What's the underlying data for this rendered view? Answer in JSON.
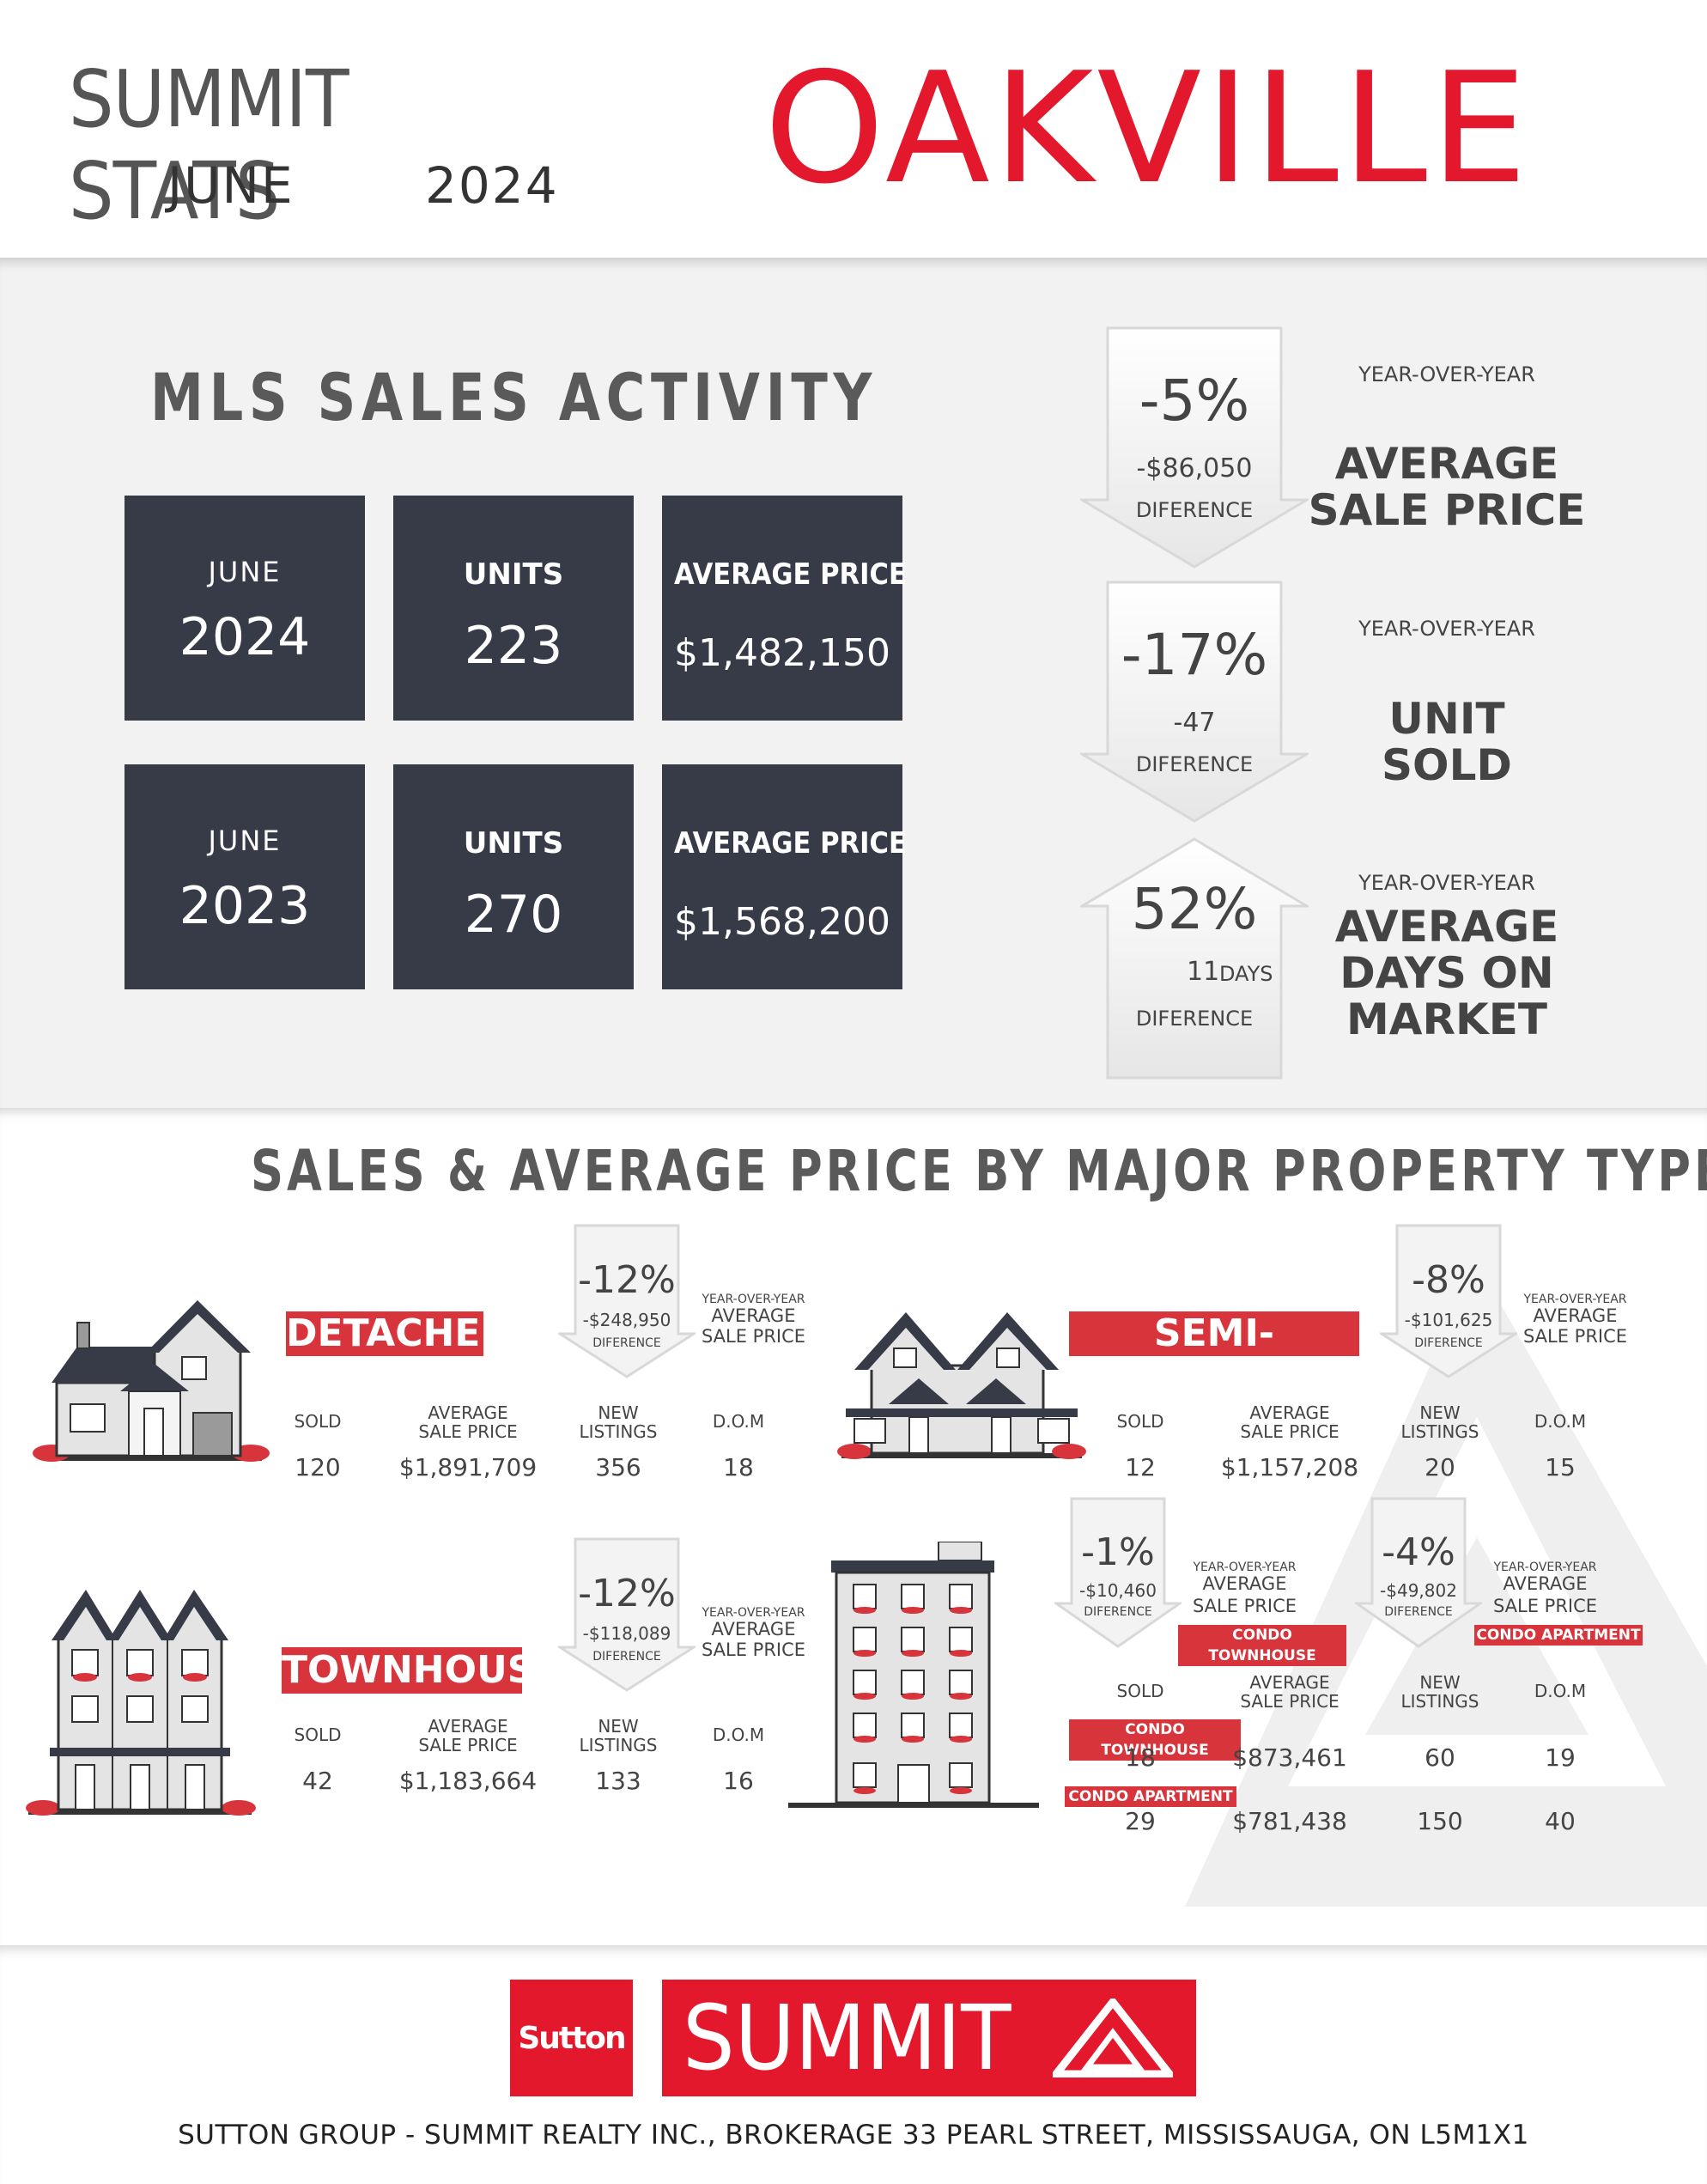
{
  "header": {
    "brand_title": "SUMMIT STATS",
    "month": "JUNE",
    "year": "2024",
    "city": "OAKVILLE"
  },
  "mls": {
    "title": "MLS SALES ACTIVITY",
    "rows": [
      {
        "month": "JUNE",
        "year": "2024",
        "units_label": "UNITS",
        "units": "223",
        "avg_label": "AVERAGE PRICE",
        "avg": "$1,482,150"
      },
      {
        "month": "JUNE",
        "year": "2023",
        "units_label": "UNITS",
        "units": "270",
        "avg_label": "AVERAGE PRICE",
        "avg": "$1,568,200"
      }
    ]
  },
  "yoy": [
    {
      "direction": "down",
      "pct": "-5%",
      "diff": "-$86,050",
      "diff_label": "DIFERENCE",
      "caption_small": "YEAR-OVER-YEAR",
      "caption_line1": "AVERAGE",
      "caption_line2": "SALE PRICE",
      "caption_line3": ""
    },
    {
      "direction": "down",
      "pct": "-17%",
      "diff": "-47",
      "diff_label": "DIFERENCE",
      "caption_small": "YEAR-OVER-YEAR",
      "caption_line1": "UNIT",
      "caption_line2": "SOLD",
      "caption_line3": ""
    },
    {
      "direction": "up",
      "pct": "52%",
      "diff": "11",
      "diff_unit": "DAYS",
      "diff_label": "DIFERENCE",
      "caption_small": "YEAR-OVER-YEAR",
      "caption_line1": "AVERAGE",
      "caption_line2": "DAYS ON",
      "caption_line3": "MARKET"
    }
  ],
  "property": {
    "title": "SALES & AVERAGE PRICE BY MAJOR PROPERTY TYPE",
    "headers": {
      "sold": "SOLD",
      "avg1": "AVERAGE",
      "avg2": "SALE PRICE",
      "new1": "NEW",
      "new2": "LISTINGS",
      "dom": "D.O.M"
    },
    "yoy_small": "YEAR-OVER-YEAR",
    "yoy_big1": "AVERAGE",
    "yoy_big2": "SALE PRICE",
    "detached": {
      "label": "DETACHED",
      "pct": "-12%",
      "diff": "-$248,950",
      "diff_label": "DIFERENCE",
      "sold": "120",
      "avg": "$1,891,709",
      "new": "356",
      "dom": "18"
    },
    "semi": {
      "label": "SEMI-DETACHED",
      "pct": "-8%",
      "diff": "-$101,625",
      "diff_label": "DIFERENCE",
      "sold": "12",
      "avg": "$1,157,208",
      "new": "20",
      "dom": "15"
    },
    "townhouse": {
      "label": "TOWNHOUSE",
      "pct": "-12%",
      "diff": "-$118,089",
      "diff_label": "DIFERENCE",
      "sold": "42",
      "avg": "$1,183,664",
      "new": "133",
      "dom": "16"
    },
    "condo": {
      "townhouse_label": "CONDO TOWNHOUSE",
      "apartment_label": "CONDO APARTMENT",
      "ct_pct": "-1%",
      "ct_diff": "-$10,460",
      "ct_diff_label": "DIFERENCE",
      "ca_pct": "-4%",
      "ca_diff": "-$49,802",
      "ca_diff_label": "DIFERENCE",
      "ct": {
        "sold": "18",
        "avg": "$873,461",
        "new": "60",
        "dom": "19"
      },
      "ca": {
        "sold": "29",
        "avg": "$781,438",
        "new": "150",
        "dom": "40"
      }
    }
  },
  "footer": {
    "logo_left": "Sutton",
    "logo_right": "SUMMIT",
    "address": "SUTTON GROUP - SUMMIT REALTY INC., BROKERAGE 33 PEARL STREET, MISSISSAUGA, ON L5M1X1",
    "brand_red": "#e3182d",
    "accent_red": "#d8343b",
    "box_dark": "#373a47"
  }
}
